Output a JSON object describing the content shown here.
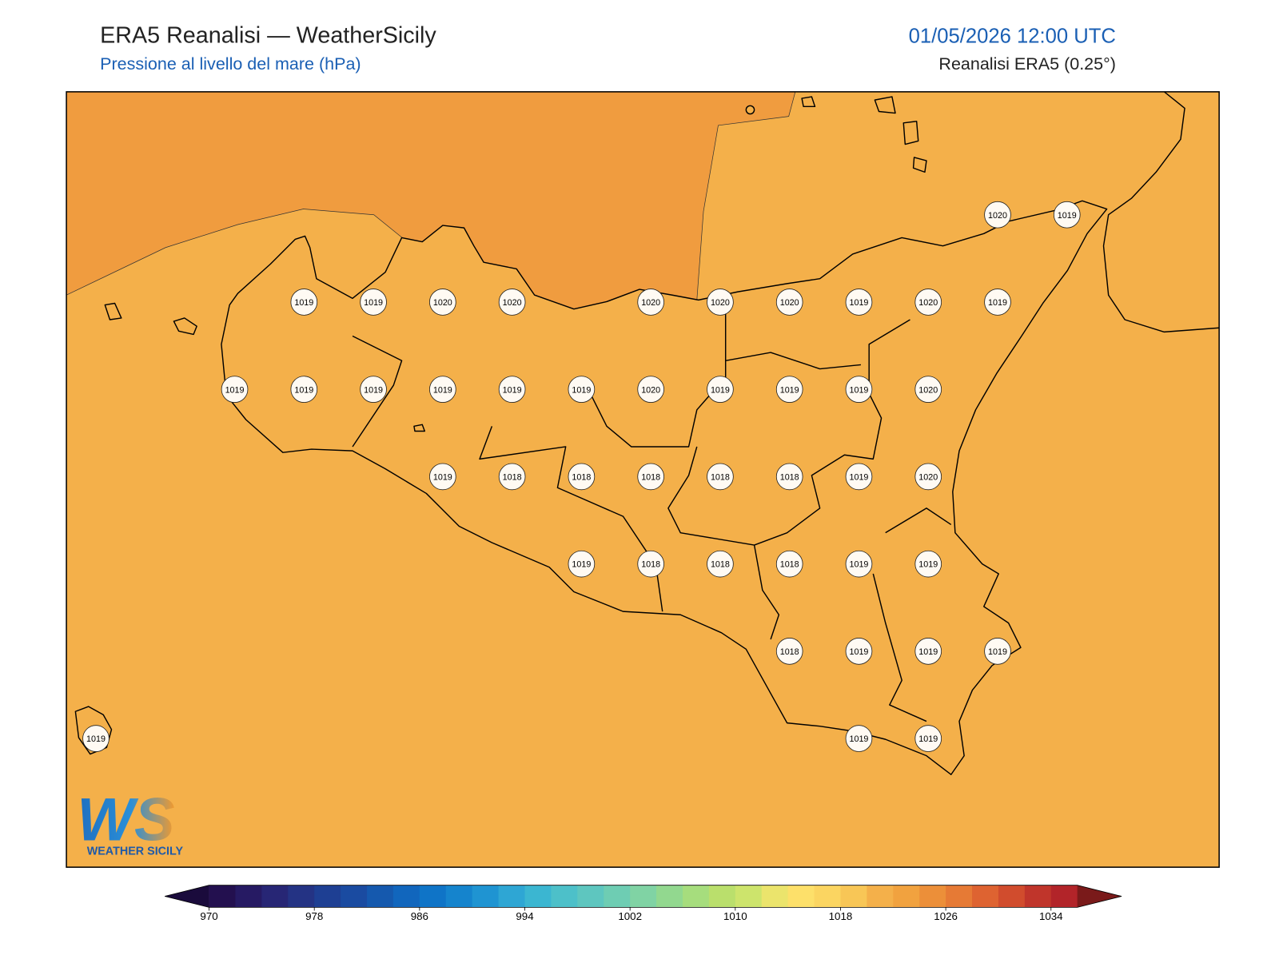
{
  "header": {
    "title": "ERA5 Reanalisi — WeatherSicily",
    "subtitle": "Pressione al livello del mare (hPa)",
    "datetime": "01/05/2026 12:00 UTC",
    "source": "Reanalisi ERA5 (0.25°)"
  },
  "stations": [
    1020,
    1019,
    1019,
    1019,
    1020,
    1020,
    1020,
    1020,
    1020,
    1019,
    1020,
    1019,
    1019,
    1019,
    1019,
    1019,
    1019,
    1019,
    1020,
    1019,
    1019,
    1019,
    1020,
    1019,
    1018,
    1018,
    1018,
    1018,
    1018,
    1019,
    1020,
    1019,
    1018,
    1018,
    1018,
    1019,
    1019,
    1018,
    1019,
    1019,
    1019,
    1019,
    1019,
    1019
  ],
  "colorbar": {
    "lim": [
      970,
      1036
    ],
    "ticks": [
      970,
      978,
      986,
      994,
      1002,
      1010,
      1018,
      1026,
      1034
    ],
    "colors": [
      "#23104f",
      "#261a63",
      "#272675",
      "#243384",
      "#1e3f93",
      "#1a4ba1",
      "#1559ae",
      "#1166bd",
      "#0f74c7",
      "#1584cd",
      "#1f94d2",
      "#2ea6d4",
      "#3bb6d1",
      "#4dc0c9",
      "#5ec6bf",
      "#6ecdb3",
      "#80d3a4",
      "#92d88f",
      "#a6dd7d",
      "#badf6c",
      "#cde46c",
      "#ebe46c",
      "#fde06a",
      "#fbd561",
      "#f8c656",
      "#f4b04a",
      "#f1a23f",
      "#ec8f39",
      "#e67a35",
      "#de6331",
      "#d14c2d",
      "#c0352b",
      "#b22429"
    ],
    "under_color": "#1a0b3c",
    "over_color": "#7a1a1a"
  },
  "logo": {
    "text": "WS",
    "caption": "WEATHER SICILY"
  }
}
